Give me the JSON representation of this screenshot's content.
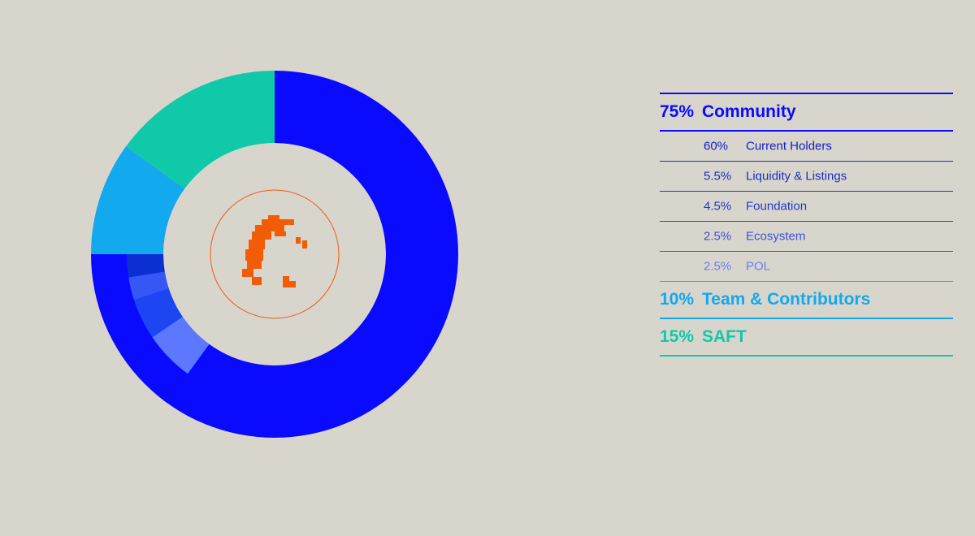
{
  "chart_data": {
    "type": "donut",
    "categories": [
      "Community",
      "Team & Contributors",
      "SAFT"
    ],
    "values": [
      75,
      10,
      15
    ],
    "value_labels": [
      "75%",
      "10%",
      "15%"
    ],
    "colors": [
      "#0a0aff",
      "#12a9ee",
      "#10c9a9"
    ],
    "breakdown": {
      "categories": [
        "Current Holders",
        "Liquidity & Listings",
        "Foundation",
        "Ecosystem",
        "POL"
      ],
      "values": [
        60,
        5.5,
        4.5,
        2.5,
        2.5
      ],
      "value_labels": [
        "60%",
        "5.5%",
        "4.5%",
        "2.5%",
        "2.5%"
      ],
      "colors": [
        "#0a0aff",
        "#5b78ff",
        "#1d45f2",
        "#3656f6",
        "#0b2fd0"
      ]
    }
  }
}
